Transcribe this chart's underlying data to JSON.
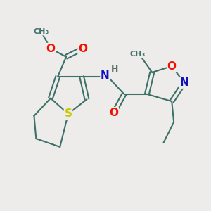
{
  "background_color": "#eeecea",
  "bond_color": "#3d7068",
  "bond_width": 1.5,
  "atoms": {
    "S": {
      "color": "#c8c800",
      "fontsize": 11
    },
    "O": {
      "color": "#ee1100",
      "fontsize": 11
    },
    "N": {
      "color": "#1111bb",
      "fontsize": 11
    },
    "H": {
      "color": "#607070",
      "fontsize": 9
    }
  },
  "figsize": [
    3.0,
    3.0
  ],
  "dpi": 100
}
